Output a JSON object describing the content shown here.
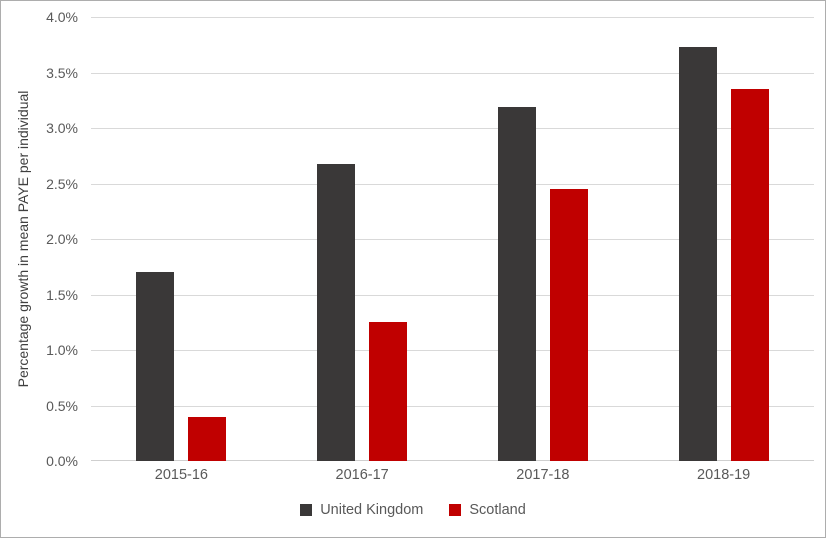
{
  "chart_data": {
    "type": "bar",
    "title": "",
    "xlabel": "",
    "ylabel": "Percentage growth in mean PAYE per individual",
    "categories": [
      "2015-16",
      "2016-17",
      "2017-18",
      "2018-19"
    ],
    "series": [
      {
        "name": "United Kingdom",
        "color": "#3a3838",
        "values": [
          1.7,
          2.68,
          3.19,
          3.73
        ]
      },
      {
        "name": "Scotland",
        "color": "#c00000",
        "values": [
          0.4,
          1.25,
          2.45,
          3.35
        ]
      }
    ],
    "ylim": [
      0,
      4.0
    ],
    "ytick_step": 0.5,
    "y_tick_labels": [
      "0.0%",
      "0.5%",
      "1.0%",
      "1.5%",
      "2.0%",
      "2.5%",
      "3.0%",
      "3.5%",
      "4.0%"
    ],
    "grid": true,
    "legend_position": "bottom"
  },
  "colors": {
    "gridline": "#d9d9d9",
    "axis_text": "#595959",
    "axis_title_text": "#404040",
    "frame_border": "#adadad",
    "background": "#ffffff",
    "uk_bar": "#3a3838",
    "scotland_bar": "#c00000"
  }
}
